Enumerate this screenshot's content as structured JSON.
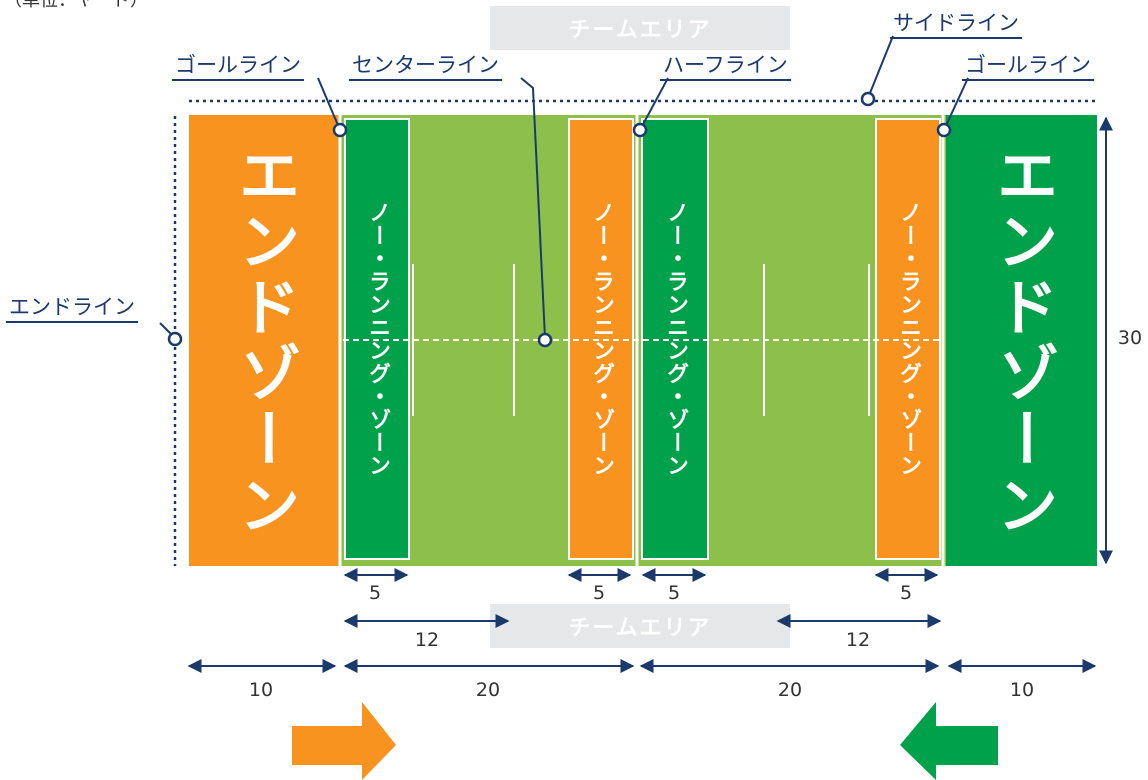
{
  "unit_note": "（単位：ヤード）",
  "team_area_label": "チームエリア",
  "end_zone_label": "エンドゾーン",
  "no_running_zone_label": "ノー・ランニング・ゾーン",
  "labels": {
    "goal_line_left": "ゴールライン",
    "center_line": "センターライン",
    "half_line": "ハーフライン",
    "side_line": "サイドライン",
    "goal_line_right": "ゴールライン",
    "end_line": "エンドライン"
  },
  "dimensions": {
    "nrz_width_1": "5",
    "nrz_width_2": "5",
    "nrz_width_3": "5",
    "nrz_width_4": "5",
    "to_nrz_left": "12",
    "to_nrz_right": "12",
    "end_zone_left": "10",
    "half_left": "20",
    "half_right": "20",
    "end_zone_right": "10",
    "field_width": "30"
  },
  "colors": {
    "orange": "#f7931e",
    "dark_green": "#00a14b",
    "light_green": "#8dc04a",
    "navy": "#1b3a6b",
    "team_area_gray": "#e6e7e8"
  },
  "directions": {
    "left_arrow_color": "orange",
    "right_arrow_color": "green"
  }
}
